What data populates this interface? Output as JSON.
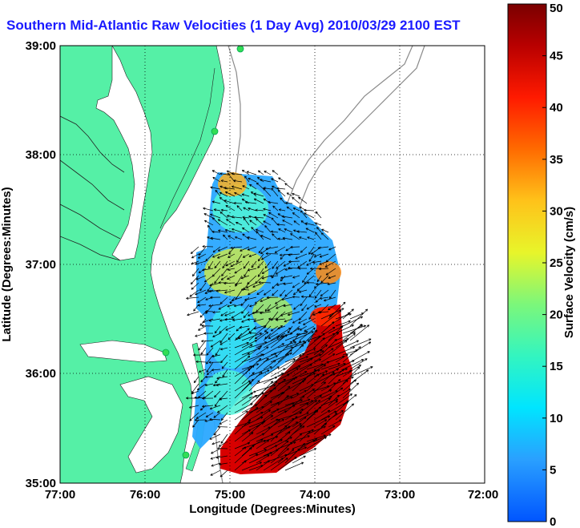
{
  "title": "Southern Mid-Atlantic Raw Velocities (1 Day Avg) 2010/03/29 2100 EST",
  "map": {
    "xlabel": "Longitude (Degrees:Minutes)",
    "ylabel": "Latitude (Degrees:Minutes)",
    "x_ticks": [
      "77:00",
      "76:00",
      "75:00",
      "74:00",
      "73:00",
      "72:00"
    ],
    "y_ticks": [
      "39:00",
      "38:00",
      "37:00",
      "36:00",
      "35:00"
    ],
    "lon_range": [
      -77,
      -72
    ],
    "lat_range": [
      35,
      39
    ],
    "land_color": "#55f0a6",
    "water_color": "#ffffff",
    "grid": true
  },
  "colorbar": {
    "label": "Surface Velocity (cm/s)",
    "min": 0,
    "max": 50,
    "tick_labels": [
      "0",
      "5",
      "10",
      "15",
      "20",
      "25",
      "30",
      "35",
      "40",
      "45",
      "50"
    ]
  }
}
